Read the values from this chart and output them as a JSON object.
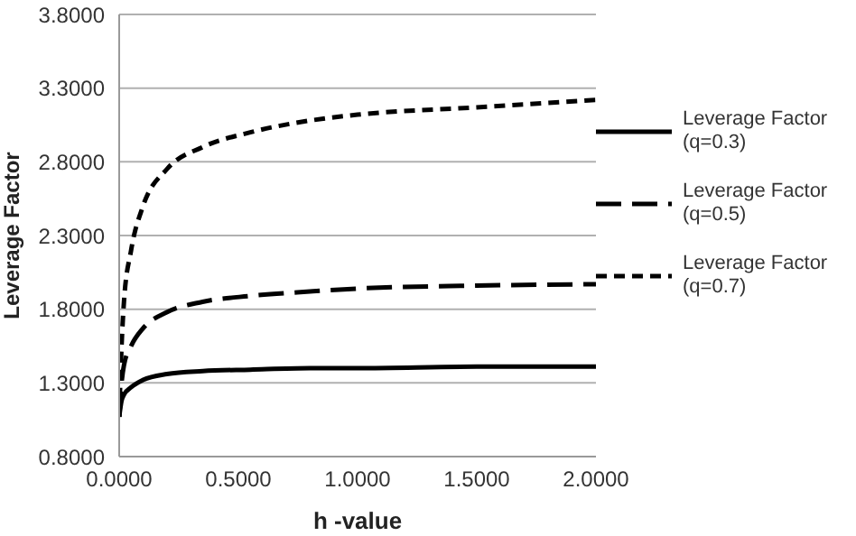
{
  "chart_data": {
    "type": "line",
    "xlabel": "h -value",
    "ylabel": "Leverage Factor",
    "xlim": [
      0,
      2
    ],
    "xticks": [
      {
        "value": 0,
        "label": "0.0000"
      },
      {
        "value": 0.5,
        "label": "0.5000"
      },
      {
        "value": 1,
        "label": "1.0000"
      },
      {
        "value": 1.5,
        "label": "1.5000"
      },
      {
        "value": 2,
        "label": "2.0000"
      }
    ],
    "ylim": [
      0.8,
      3.8
    ],
    "yticks": [
      {
        "value": 0.8,
        "label": "0.8000"
      },
      {
        "value": 1.3,
        "label": "1.3000"
      },
      {
        "value": 1.8,
        "label": "1.8000"
      },
      {
        "value": 2.3,
        "label": "2.3000"
      },
      {
        "value": 2.8,
        "label": "2.8000"
      },
      {
        "value": 3.3,
        "label": "3.3000"
      },
      {
        "value": 3.8,
        "label": "3.8000"
      }
    ],
    "grid": "y",
    "legend": "right",
    "marker": "none",
    "x": [
      0,
      0.01,
      0.02,
      0.05,
      0.1,
      0.2,
      0.35,
      0.55,
      0.8,
      1,
      1.5,
      2
    ],
    "series": [
      {
        "name": "Leverage Factor (q=0.3)",
        "color": "#000000",
        "line_style": "solid",
        "values": [
          1.07,
          1.18,
          1.22,
          1.27,
          1.32,
          1.36,
          1.38,
          1.39,
          1.4,
          1.4,
          1.41,
          1.41
        ]
      },
      {
        "name": "Leverage Factor (q=0.5)",
        "color": "#000000",
        "line_style": "dashed",
        "values": [
          1.07,
          1.3,
          1.42,
          1.55,
          1.67,
          1.78,
          1.85,
          1.89,
          1.92,
          1.94,
          1.96,
          1.97
        ]
      },
      {
        "name": "Leverage Factor (q=0.7)",
        "color": "#000000",
        "line_style": "dashed",
        "values": [
          1.07,
          1.55,
          1.85,
          2.2,
          2.5,
          2.75,
          2.9,
          3.0,
          3.08,
          3.12,
          3.17,
          3.22
        ]
      }
    ]
  }
}
